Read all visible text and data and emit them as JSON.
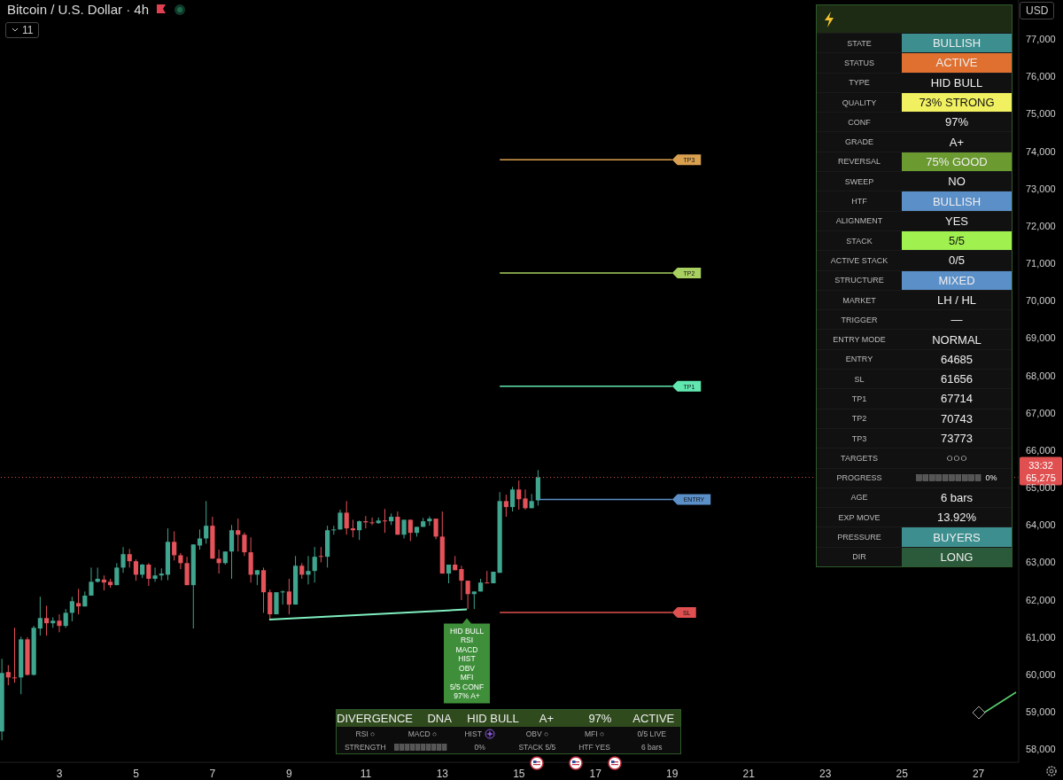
{
  "chart_data": [
    {
      "type": "candlestick",
      "title": "Bitcoin / U.S. Dollar · 4h",
      "x": [
        1.5,
        1.667,
        1.833,
        2,
        2.167,
        2.333,
        2.5,
        2.667,
        2.833,
        3,
        3.167,
        3.333,
        3.5,
        3.667,
        3.833,
        4,
        4.167,
        4.333,
        4.5,
        4.667,
        4.833,
        5,
        5.167,
        5.333,
        5.5,
        5.667,
        5.833,
        6,
        6.167,
        6.333,
        6.5,
        6.667,
        6.833,
        7,
        7.167,
        7.333,
        7.5,
        7.667,
        7.833,
        8,
        8.167,
        8.333,
        8.5,
        8.667,
        8.833,
        9,
        9.167,
        9.333,
        9.5,
        9.667,
        9.833,
        10,
        10.167,
        10.333,
        10.5,
        10.667,
        10.833,
        11,
        11.167,
        11.333,
        11.5,
        11.667,
        11.833,
        12,
        12.167,
        12.333,
        12.5,
        12.667,
        12.833,
        13,
        13.167,
        13.333,
        13.5,
        13.667,
        13.833,
        14,
        14.167,
        14.333,
        14.5,
        14.667,
        14.833,
        15,
        15.167,
        15.333,
        15.5
      ],
      "ohlc": [
        [
          58475,
          60420,
          58240,
          60040
        ],
        [
          60065,
          60250,
          59710,
          59920
        ],
        [
          59920,
          61250,
          59780,
          59900
        ],
        [
          59920,
          61010,
          59470,
          60940
        ],
        [
          60940,
          61000,
          59970,
          59990
        ],
        [
          59990,
          61300,
          59970,
          61250
        ],
        [
          61230,
          62080,
          61040,
          61510
        ],
        [
          61510,
          61840,
          61040,
          61370
        ],
        [
          61370,
          61530,
          61250,
          61440
        ],
        [
          61440,
          61610,
          61130,
          61300
        ],
        [
          61300,
          61750,
          61250,
          61650
        ],
        [
          61650,
          62080,
          61420,
          61960
        ],
        [
          61910,
          62290,
          61610,
          61820
        ],
        [
          61820,
          62220,
          61820,
          62110
        ],
        [
          62110,
          62860,
          62110,
          62480
        ],
        [
          62480,
          62860,
          62460,
          62560
        ],
        [
          62540,
          62650,
          62250,
          62460
        ],
        [
          62480,
          62560,
          62320,
          62390
        ],
        [
          62390,
          62980,
          62390,
          62860
        ],
        [
          62860,
          63410,
          62720,
          63220
        ],
        [
          63220,
          63360,
          62860,
          63030
        ],
        [
          63030,
          63080,
          62510,
          62670
        ],
        [
          62670,
          62960,
          62580,
          62940
        ],
        [
          62940,
          62980,
          62370,
          62560
        ],
        [
          62560,
          62860,
          62480,
          62650
        ],
        [
          62650,
          62840,
          62520,
          62700
        ],
        [
          62670,
          63910,
          62520,
          63550
        ],
        [
          63550,
          63830,
          63050,
          63190
        ],
        [
          63190,
          63250,
          62820,
          62980
        ],
        [
          62980,
          63150,
          62390,
          62390
        ],
        [
          62390,
          63480,
          61230,
          63480
        ],
        [
          63450,
          63880,
          63340,
          63640
        ],
        [
          63640,
          64640,
          63500,
          63980
        ],
        [
          63980,
          64220,
          63100,
          63100
        ],
        [
          63100,
          63340,
          62700,
          62980
        ],
        [
          62980,
          63290,
          62940,
          63290
        ],
        [
          63290,
          64000,
          62560,
          63860
        ],
        [
          63860,
          64170,
          63290,
          63740
        ],
        [
          63740,
          63800,
          63170,
          63270
        ],
        [
          63270,
          63670,
          62460,
          62670
        ],
        [
          62670,
          62790,
          62390,
          62790
        ],
        [
          62790,
          62860,
          61650,
          62200
        ],
        [
          62200,
          62270,
          61490,
          61610
        ],
        [
          61610,
          62200,
          61610,
          62200
        ],
        [
          62200,
          62250,
          61870,
          62220
        ],
        [
          62220,
          62560,
          61610,
          61870
        ],
        [
          61870,
          63170,
          61870,
          62910
        ],
        [
          62910,
          62980,
          62560,
          62670
        ],
        [
          62670,
          63170,
          62410,
          62770
        ],
        [
          62770,
          63410,
          62460,
          63150
        ],
        [
          63170,
          63410,
          63000,
          63150
        ],
        [
          63150,
          63980,
          62860,
          63860
        ],
        [
          63860,
          63980,
          63740,
          63880
        ],
        [
          63880,
          64410,
          63880,
          64330
        ],
        [
          64330,
          64640,
          63740,
          63910
        ],
        [
          63910,
          64140,
          63670,
          63860
        ],
        [
          63860,
          64120,
          63600,
          64100
        ],
        [
          64100,
          64240,
          63910,
          64070
        ],
        [
          64070,
          64200,
          64000,
          64050
        ],
        [
          64050,
          64200,
          64030,
          64120
        ],
        [
          64120,
          64430,
          63790,
          64100
        ],
        [
          64100,
          64310,
          64000,
          64220
        ],
        [
          64220,
          64360,
          63740,
          63740
        ],
        [
          63740,
          64140,
          63640,
          64140
        ],
        [
          64140,
          64140,
          63570,
          63790
        ],
        [
          63790,
          63950,
          63690,
          63950
        ],
        [
          63950,
          64190,
          63950,
          64100
        ],
        [
          64100,
          64230,
          63980,
          64170
        ],
        [
          64170,
          64170,
          63620,
          63690
        ],
        [
          63690,
          64360,
          62700,
          62700
        ],
        [
          62700,
          62940,
          62440,
          62940
        ],
        [
          62940,
          63170,
          62790,
          62790
        ],
        [
          62820,
          62910,
          61990,
          62510
        ],
        [
          62510,
          62510,
          61750,
          62150
        ],
        [
          62150,
          62220,
          61750,
          62220
        ],
        [
          62220,
          62560,
          62220,
          62460
        ],
        [
          62460,
          62770,
          62440,
          62440
        ],
        [
          62440,
          62750,
          62440,
          62750
        ],
        [
          62720,
          64880,
          62720,
          64640
        ],
        [
          64640,
          64810,
          64220,
          64480
        ],
        [
          64480,
          65020,
          64360,
          64950
        ],
        [
          64950,
          65190,
          64410,
          64690
        ],
        [
          64710,
          64950,
          64410,
          64450
        ],
        [
          64450,
          64830,
          64450,
          64640
        ],
        [
          64660,
          65470,
          64520,
          65275
        ]
      ],
      "series": [
        {
          "type": "line",
          "name": "TP3",
          "color": "#d9a050",
          "x": [
            14.5,
            19
          ],
          "values": [
            73773,
            73773
          ]
        },
        {
          "type": "line",
          "name": "TP2",
          "color": "#a8d060",
          "x": [
            14.5,
            19
          ],
          "values": [
            70743,
            70743
          ]
        },
        {
          "type": "line",
          "name": "TP1",
          "color": "#60e8b0",
          "x": [
            14.5,
            19
          ],
          "values": [
            67714,
            67714
          ]
        },
        {
          "type": "line",
          "name": "ENTRY",
          "color": "#5b8fc8",
          "x": [
            15.5,
            19
          ],
          "values": [
            64685,
            64685
          ]
        },
        {
          "type": "line",
          "name": "SL",
          "color": "#e05050",
          "x": [
            14.5,
            19
          ],
          "values": [
            61656,
            61656
          ]
        },
        {
          "type": "line",
          "color": "#80f0c0",
          "x": [
            8.48,
            13.64
          ],
          "values": [
            61470,
            61740
          ]
        }
      ],
      "ref_lines": [
        {
          "axis": "y",
          "value": 65275,
          "label": "65,275",
          "color": "#e05050",
          "line_style": "dotted"
        }
      ],
      "annotations": [
        {
          "text": "HID BULL\nRSI\nMACD\nHIST\nOBV\nMFI\n5/5 CONF\n97% A+",
          "x": 13.64,
          "y": 61740
        },
        "11",
        "USD",
        "33:32"
      ],
      "xlim": [
        1.45,
        28.05
      ],
      "xticks": [
        3,
        5,
        7,
        9,
        11,
        13,
        15,
        17,
        19,
        21,
        23,
        25,
        27
      ],
      "ylim": [
        57650,
        78050
      ],
      "yticks": [
        {
          "value": 58000,
          "label": "58,000"
        },
        {
          "value": 59000,
          "label": "59,000"
        },
        {
          "value": 60000,
          "label": "60,000"
        },
        {
          "value": 61000,
          "label": "61,000"
        },
        {
          "value": 62000,
          "label": "62,000"
        },
        {
          "value": 63000,
          "label": "63,000"
        },
        {
          "value": 64000,
          "label": "64,000"
        },
        {
          "value": 65000,
          "label": "65,000"
        },
        {
          "value": 66000,
          "label": "66,000"
        },
        {
          "value": 67000,
          "label": "67,000"
        },
        {
          "value": 68000,
          "label": "68,000"
        },
        {
          "value": 69000,
          "label": "69,000"
        },
        {
          "value": 70000,
          "label": "70,000"
        },
        {
          "value": 71000,
          "label": "71,000"
        },
        {
          "value": 72000,
          "label": "72,000"
        },
        {
          "value": 73000,
          "label": "73,000"
        },
        {
          "value": 74000,
          "label": "74,000"
        },
        {
          "value": 75000,
          "label": "75,000"
        },
        {
          "value": 76000,
          "label": "76,000"
        },
        {
          "value": 77000,
          "label": "77,000"
        }
      ]
    },
    {
      "type": "other",
      "categories": [
        "STATE",
        "STATUS",
        "TYPE",
        "QUALITY",
        "CONF",
        "GRADE",
        "REVERSAL",
        "SWEEP",
        "HTF",
        "ALIGNMENT",
        "STACK",
        "ACTIVE STACK",
        "STRUCTURE",
        "MARKET",
        "TRIGGER",
        "ENTRY MODE",
        "ENTRY",
        "SL",
        "TP1",
        "TP2",
        "TP3",
        "TARGETS",
        "PROGRESS",
        "AGE",
        "EXP MOVE",
        "PRESSURE",
        "DIR"
      ],
      "value_labels": [
        "BULLISH",
        "ACTIVE",
        "HID BULL",
        "73% STRONG",
        "97%",
        "A+",
        "75% GOOD",
        "NO",
        "BULLISH",
        "YES",
        "5/5",
        "0/5",
        "MIXED",
        "LH / HL",
        "—",
        "NORMAL",
        "64685",
        "61656",
        "67714",
        "70743",
        "73773",
        "○○○",
        "0%",
        "6 bars",
        "13.92%",
        "BUYERS",
        "LONG"
      ],
      "colors": [
        "#3d8f8f",
        "#e07030",
        null,
        "#f0f060",
        null,
        null,
        "#6a9a30",
        null,
        "#5b8fc8",
        null,
        "#a0f050",
        null,
        "#5b8fc8",
        null,
        null,
        null,
        null,
        null,
        null,
        null,
        null,
        null,
        null,
        null,
        null,
        "#3d8f8f",
        "#2a5a3a"
      ]
    },
    {
      "type": "other",
      "categories": [
        "DIVERGENCE",
        "DNA",
        "HID BULL",
        "A+",
        "97%",
        "ACTIVE"
      ],
      "cell_labels": [
        [
          "RSI ○",
          "MACD ○",
          "HIST",
          "OBV ○",
          "MFI ○",
          "0/5 LIVE"
        ],
        [
          "STRENGTH",
          null,
          "0%",
          "STACK 5/5",
          "HTF YES",
          "6 bars"
        ]
      ]
    }
  ]
}
